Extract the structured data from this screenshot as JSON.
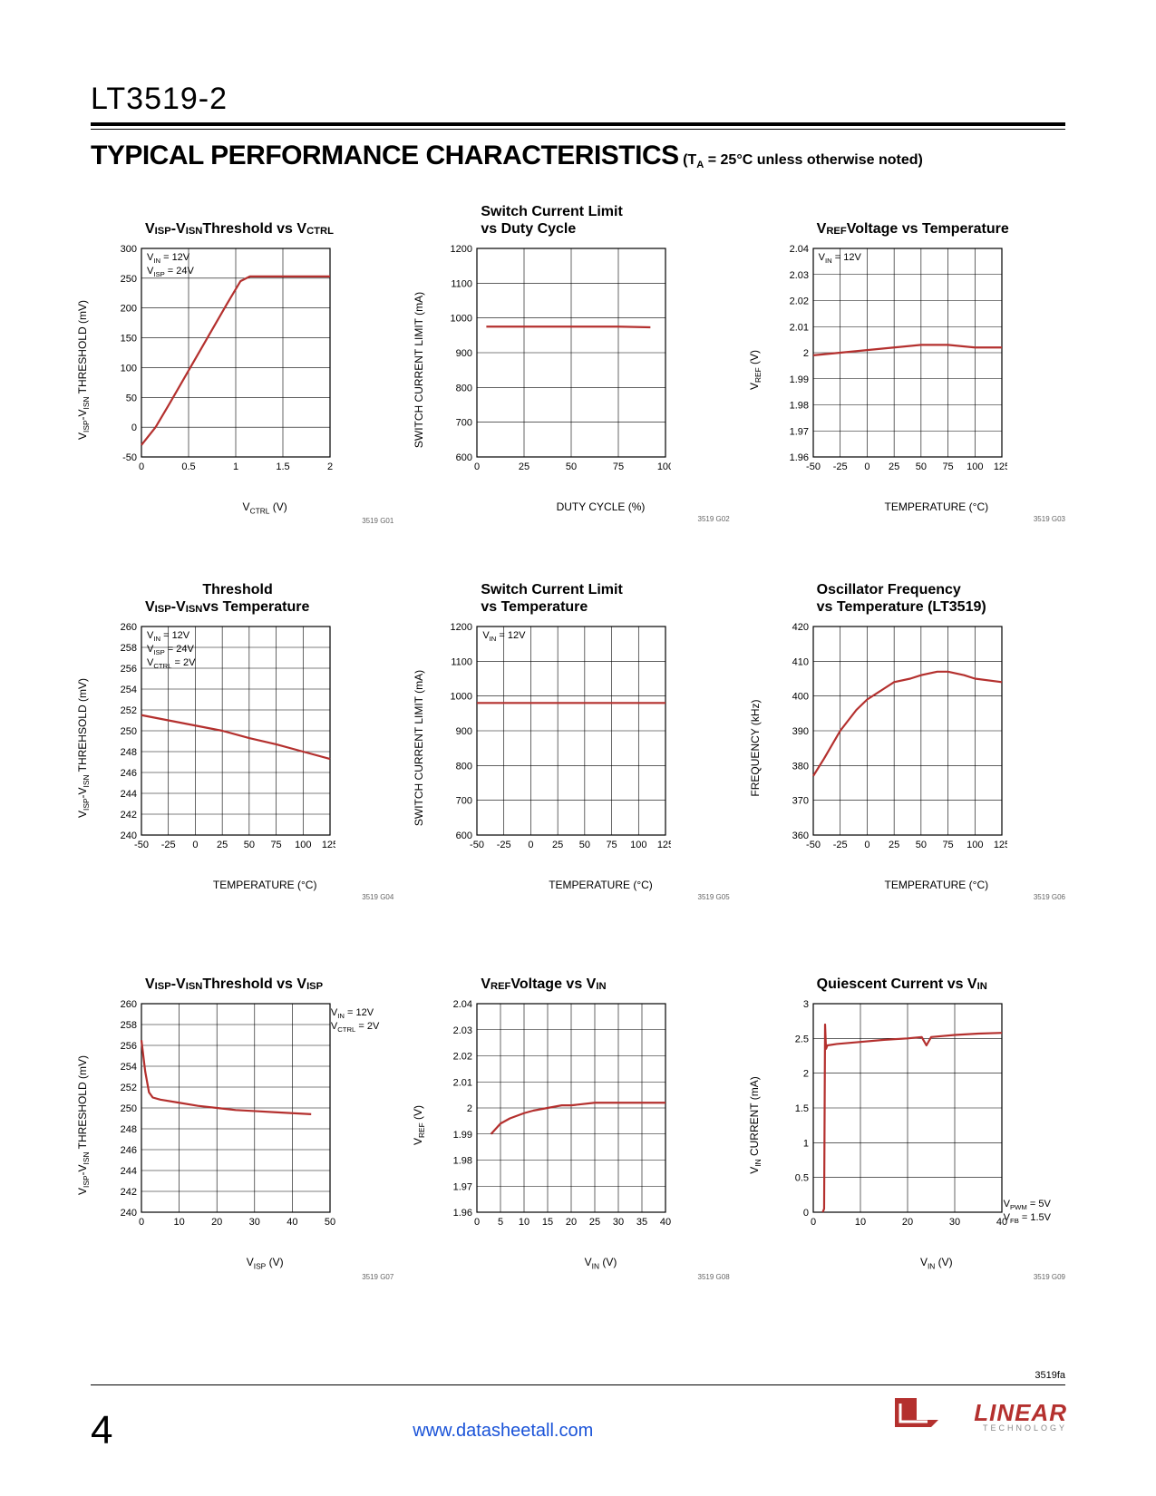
{
  "header": {
    "part_number": "LT3519-2",
    "section_title": "TYPICAL PERFORMANCE CHARACTERISTICS",
    "section_condition": "(T_A = 25°C unless otherwise noted)"
  },
  "styling": {
    "line_color": "#b4302e",
    "grid_color": "#000000",
    "line_width": 2.2,
    "background": "#ffffff",
    "title_fontsize": 16,
    "label_fontsize": 12,
    "tick_fontsize": 11
  },
  "charts": [
    {
      "title": "V_ISP-V_ISN Threshold vs V_CTRL",
      "xlabel": "V_CTRL (V)",
      "ylabel": "V_ISP-V_ISN THRESHOLD (mV)",
      "xlim": [
        0,
        2.0
      ],
      "xticks": [
        0,
        0.5,
        1.0,
        1.5,
        2.0
      ],
      "ylim": [
        -50,
        300
      ],
      "yticks": [
        -50,
        0,
        50,
        100,
        150,
        200,
        250,
        300
      ],
      "data": [
        [
          0,
          -30
        ],
        [
          0.15,
          0
        ],
        [
          0.3,
          40
        ],
        [
          0.5,
          95
        ],
        [
          0.7,
          150
        ],
        [
          0.9,
          205
        ],
        [
          1.05,
          245
        ],
        [
          1.15,
          253
        ],
        [
          1.3,
          253
        ],
        [
          2.0,
          253
        ]
      ],
      "annot": {
        "text": "V_IN = 12V\nV_ISP = 24V",
        "pos": "top-left"
      },
      "fig_id": "3519 G01"
    },
    {
      "title": "Switch Current Limit\nvs Duty Cycle",
      "xlabel": "DUTY CYCLE (%)",
      "ylabel": "SWITCH CURRENT LIMIT (mA)",
      "xlim": [
        0,
        100
      ],
      "xticks": [
        0,
        25,
        50,
        75,
        100
      ],
      "ylim": [
        600,
        1200
      ],
      "yticks": [
        600,
        700,
        800,
        900,
        1000,
        1100,
        1200
      ],
      "data": [
        [
          5,
          975
        ],
        [
          25,
          975
        ],
        [
          50,
          975
        ],
        [
          75,
          975
        ],
        [
          92,
          973
        ]
      ],
      "annot": null,
      "fig_id": "3519 G02"
    },
    {
      "title": "V_REF Voltage vs Temperature",
      "xlabel": "TEMPERATURE (°C)",
      "ylabel": "V_REF (V)",
      "xlim": [
        -50,
        125
      ],
      "xticks": [
        -50,
        -25,
        0,
        25,
        50,
        75,
        100,
        125
      ],
      "ylim": [
        1.96,
        2.04
      ],
      "yticks": [
        1.96,
        1.97,
        1.98,
        1.99,
        2.0,
        2.01,
        2.02,
        2.03,
        2.04
      ],
      "data": [
        [
          -50,
          1.999
        ],
        [
          -25,
          2.0
        ],
        [
          0,
          2.001
        ],
        [
          25,
          2.002
        ],
        [
          50,
          2.003
        ],
        [
          75,
          2.003
        ],
        [
          100,
          2.002
        ],
        [
          125,
          2.002
        ]
      ],
      "annot": {
        "text": "V_IN = 12V",
        "pos": "top-left"
      },
      "fig_id": "3519 G03"
    },
    {
      "title": "V_ISP-V_ISN Threshold\nvs Temperature",
      "xlabel": "TEMPERATURE (°C)",
      "ylabel": "V_ISP-V_ISN THREHSOLD (mV)",
      "xlim": [
        -50,
        125
      ],
      "xticks": [
        -50,
        -25,
        0,
        25,
        50,
        75,
        100,
        125
      ],
      "ylim": [
        240,
        260
      ],
      "yticks": [
        240,
        242,
        244,
        246,
        248,
        250,
        252,
        254,
        256,
        258,
        260
      ],
      "data": [
        [
          -50,
          251.5
        ],
        [
          -25,
          251
        ],
        [
          0,
          250.5
        ],
        [
          25,
          250
        ],
        [
          50,
          249.3
        ],
        [
          75,
          248.7
        ],
        [
          100,
          248
        ],
        [
          125,
          247.3
        ]
      ],
      "annot": {
        "text": "V_IN = 12V\nV_ISP = 24V\nV_CTRL = 2V",
        "pos": "top-left"
      },
      "fig_id": "3519 G04"
    },
    {
      "title": "Switch Current Limit\nvs Temperature",
      "xlabel": "TEMPERATURE (°C)",
      "ylabel": "SWITCH CURRENT LIMIT (mA)",
      "xlim": [
        -50,
        125
      ],
      "xticks": [
        -50,
        -25,
        0,
        25,
        50,
        75,
        100,
        125
      ],
      "ylim": [
        600,
        1200
      ],
      "yticks": [
        600,
        700,
        800,
        900,
        1000,
        1100,
        1200
      ],
      "data": [
        [
          -50,
          980
        ],
        [
          -25,
          980
        ],
        [
          0,
          980
        ],
        [
          25,
          980
        ],
        [
          50,
          980
        ],
        [
          75,
          980
        ],
        [
          100,
          980
        ],
        [
          125,
          980
        ]
      ],
      "annot": {
        "text": "V_IN = 12V",
        "pos": "top-left"
      },
      "fig_id": "3519 G05"
    },
    {
      "title": "Oscillator Frequency\nvs Temperature (LT3519)",
      "xlabel": "TEMPERATURE (°C)",
      "ylabel": "FREQUENCY (kHz)",
      "xlim": [
        -50,
        125
      ],
      "xticks": [
        -50,
        -25,
        0,
        25,
        50,
        75,
        100,
        125
      ],
      "ylim": [
        360,
        420
      ],
      "yticks": [
        360,
        370,
        380,
        390,
        400,
        410,
        420
      ],
      "data": [
        [
          -50,
          377
        ],
        [
          -40,
          382
        ],
        [
          -25,
          390
        ],
        [
          -10,
          396
        ],
        [
          0,
          399
        ],
        [
          15,
          402
        ],
        [
          25,
          404
        ],
        [
          40,
          405
        ],
        [
          50,
          406
        ],
        [
          65,
          407
        ],
        [
          75,
          407
        ],
        [
          90,
          406
        ],
        [
          100,
          405
        ],
        [
          125,
          404
        ]
      ],
      "annot": null,
      "fig_id": "3519 G06"
    },
    {
      "title": "V_ISP-V_ISN Threshold vs V_ISP",
      "xlabel": "V_ISP (V)",
      "ylabel": "V_ISP-V_ISN THRESHOLD (mV)",
      "xlim": [
        0,
        50
      ],
      "xticks": [
        0,
        10,
        20,
        30,
        40,
        50
      ],
      "ylim": [
        240,
        260
      ],
      "yticks": [
        240,
        242,
        244,
        246,
        248,
        250,
        252,
        254,
        256,
        258,
        260
      ],
      "data": [
        [
          0,
          256.5
        ],
        [
          1,
          253.5
        ],
        [
          2,
          251.5
        ],
        [
          3,
          251
        ],
        [
          5,
          250.8
        ],
        [
          10,
          250.5
        ],
        [
          15,
          250.2
        ],
        [
          20,
          250
        ],
        [
          25,
          249.8
        ],
        [
          30,
          249.7
        ],
        [
          35,
          249.6
        ],
        [
          40,
          249.5
        ],
        [
          45,
          249.4
        ]
      ],
      "annot": {
        "text": "V_IN = 12V\nV_CTRL = 2V",
        "pos": "top-right"
      },
      "fig_id": "3519 G07"
    },
    {
      "title": "V_REF Voltage vs V_IN",
      "xlabel": "V_IN (V)",
      "ylabel": "V_REF (V)",
      "xlim": [
        0,
        40
      ],
      "xticks": [
        0,
        5,
        10,
        15,
        20,
        25,
        30,
        35,
        40
      ],
      "ylim": [
        1.96,
        2.04
      ],
      "yticks": [
        1.96,
        1.97,
        1.98,
        1.99,
        2.0,
        2.01,
        2.02,
        2.03,
        2.04
      ],
      "data": [
        [
          3,
          1.99
        ],
        [
          4,
          1.992
        ],
        [
          5,
          1.994
        ],
        [
          7,
          1.996
        ],
        [
          10,
          1.998
        ],
        [
          12,
          1.999
        ],
        [
          15,
          2.0
        ],
        [
          18,
          2.001
        ],
        [
          20,
          2.001
        ],
        [
          25,
          2.002
        ],
        [
          30,
          2.002
        ],
        [
          35,
          2.002
        ],
        [
          40,
          2.002
        ]
      ],
      "annot": null,
      "fig_id": "3519 G08"
    },
    {
      "title": "Quiescent Current vs V_IN",
      "xlabel": "V_IN (V)",
      "ylabel": "V_IN CURRENT (mA)",
      "xlim": [
        0,
        40
      ],
      "xticks": [
        0,
        10,
        20,
        30,
        40
      ],
      "ylim": [
        0,
        3.0
      ],
      "yticks": [
        0,
        0.5,
        1.0,
        1.5,
        2.0,
        2.5,
        3.0
      ],
      "data": [
        [
          2,
          0
        ],
        [
          2.3,
          0.05
        ],
        [
          2.5,
          2.7
        ],
        [
          2.7,
          2.35
        ],
        [
          3,
          2.4
        ],
        [
          5,
          2.42
        ],
        [
          10,
          2.45
        ],
        [
          15,
          2.48
        ],
        [
          20,
          2.5
        ],
        [
          23,
          2.52
        ],
        [
          24,
          2.4
        ],
        [
          25,
          2.52
        ],
        [
          30,
          2.55
        ],
        [
          35,
          2.57
        ],
        [
          40,
          2.58
        ]
      ],
      "annot": {
        "text": "V_PWM = 5V\nV_FB = 1.5V",
        "pos": "bottom-right"
      },
      "fig_id": "3519 G09"
    }
  ],
  "footer": {
    "doc_rev": "3519fa",
    "page_num": "4",
    "url": "www.datasheetall.com",
    "logo_main": "LINEAR",
    "logo_sub": "TECHNOLOGY"
  }
}
